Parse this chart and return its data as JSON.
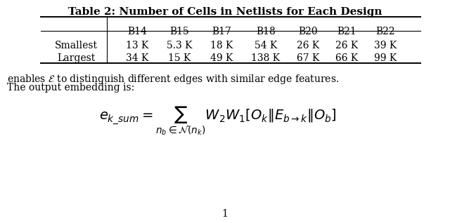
{
  "title": "Table 2: Number of Cells in Netlists for Each Design",
  "col_headers": [
    "",
    "B14",
    "B15",
    "B17",
    "B18",
    "B20",
    "B21",
    "B22"
  ],
  "rows": [
    [
      "Smallest",
      "13 K",
      "5.3 K",
      "18 K",
      "54 K",
      "26 K",
      "26 K",
      "39 K"
    ],
    [
      "Largest",
      "34 K",
      "15 K",
      "49 K",
      "138 K",
      "67 K",
      "66 K",
      "99 K"
    ]
  ],
  "text_line1": "enables $\\mathcal{E}$ to distinguish different edges with similar edge features.",
  "text_line2": "The output embedding is:",
  "page_number": "1",
  "bg_color": "#ffffff",
  "text_color": "#000000",
  "font_size_title": 11,
  "font_size_table": 10,
  "font_size_text": 10,
  "font_size_eq": 12
}
